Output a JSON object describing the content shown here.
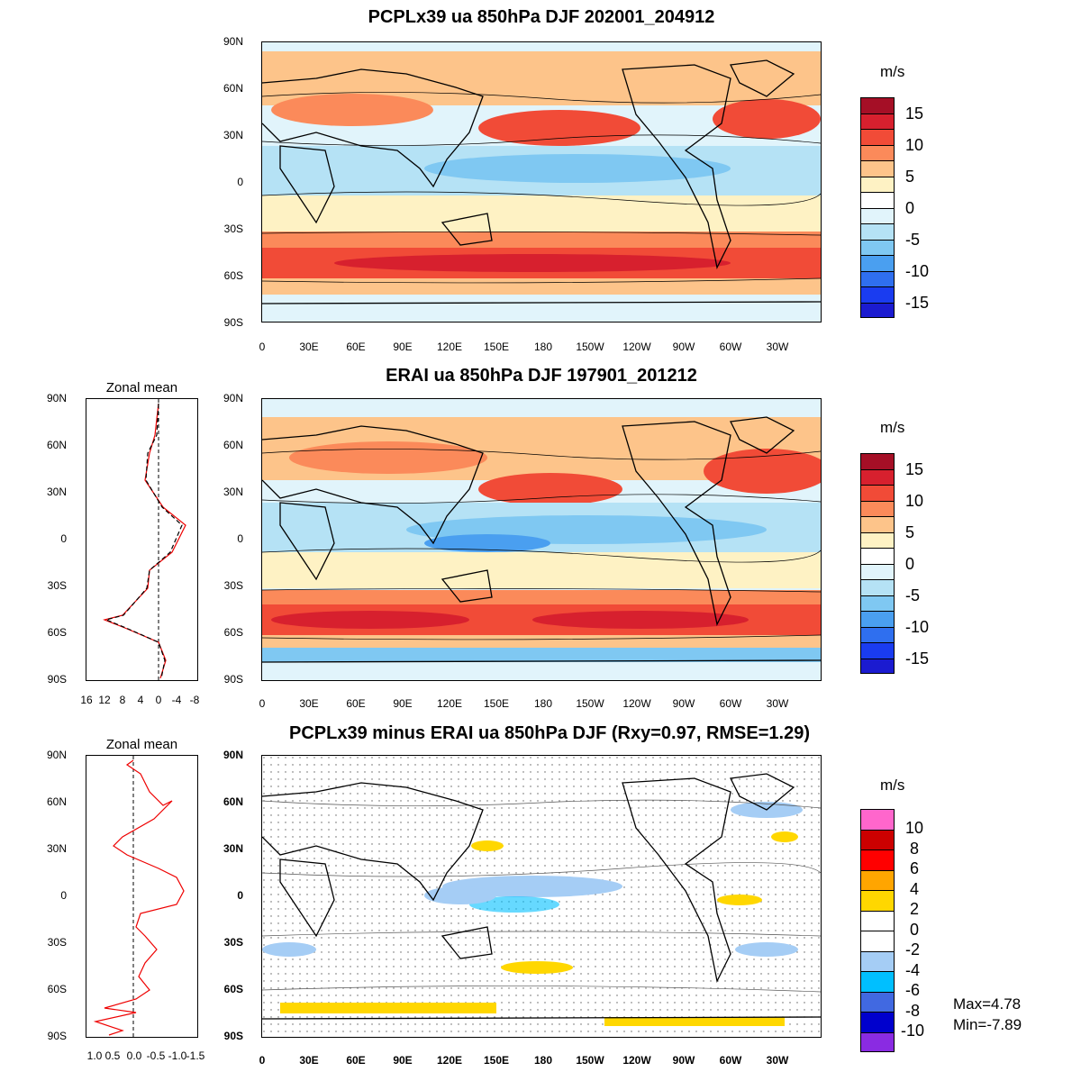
{
  "panels": {
    "top": {
      "title": "PCPLx39 ua 850hPa DJF 202001_204912"
    },
    "middle": {
      "title": "ERAI ua 850hPa DJF 197901_201212"
    },
    "bottom": {
      "title": "PCPLx39 minus ERAI ua 850hPa DJF (Rxy=0.97, RMSE=1.29)"
    }
  },
  "lat_labels": [
    "90N",
    "60N",
    "30N",
    "0",
    "30S",
    "60S",
    "90S"
  ],
  "lon_labels": [
    "0",
    "30E",
    "60E",
    "90E",
    "120E",
    "150E",
    "180",
    "150W",
    "120W",
    "90W",
    "60W",
    "30W"
  ],
  "units": "m/s",
  "zonal_mean": {
    "title": "Zonal mean",
    "middle_x_ticks": [
      "16",
      "12",
      "8",
      "4",
      "0",
      "-4",
      "-8"
    ],
    "bottom_x_ticks": [
      "1.0",
      "0.5",
      "0.0",
      "-0.5",
      "-1.0",
      "-1.5"
    ]
  },
  "colorbar_abs": {
    "labels": [
      "15",
      "10",
      "5",
      "0",
      "-5",
      "-10",
      "-15"
    ],
    "colors": [
      "#a50f26",
      "#d7202e",
      "#f14b37",
      "#fb8a5a",
      "#fdc48a",
      "#fef2c4",
      "#ffffff",
      "#e1f4fb",
      "#b5e2f5",
      "#7fc8f2",
      "#4a9ff0",
      "#2f6fef",
      "#1a3cf0",
      "#1b1bd0"
    ]
  },
  "colorbar_diff": {
    "labels": [
      "10",
      "8",
      "6",
      "4",
      "2",
      "0",
      "-2",
      "-4",
      "-6",
      "-8",
      "-10"
    ],
    "colors": [
      "#ff66cc",
      "#cc0000",
      "#ff0000",
      "#ffa500",
      "#ffd700",
      "#ffffff",
      "#ffffff",
      "#a5cdf5",
      "#00bfff",
      "#4169e1",
      "#0000cd",
      "#8a2be2"
    ]
  },
  "stats": {
    "max": "Max=4.78",
    "min": "Min=-7.89"
  }
}
